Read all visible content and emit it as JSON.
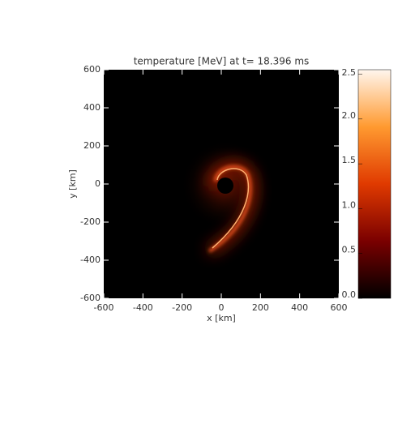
{
  "chart_data": {
    "type": "heatmap",
    "title": "temperature [MeV] at t= 18.396 ms",
    "x_label": "x [km]",
    "y_label": "y [km]",
    "xlim": [
      -600,
      600
    ],
    "ylim": [
      -600,
      600
    ],
    "xticks": [
      -600,
      -400,
      -200,
      0,
      200,
      400,
      600
    ],
    "yticks": [
      -600,
      -400,
      -200,
      0,
      200,
      400,
      600
    ],
    "clim": [
      0,
      2.55
    ],
    "cticks": [
      {
        "value": 0,
        "label": "0.0"
      },
      0.5,
      {
        "value": 1,
        "label": "1.0"
      },
      1.5,
      {
        "value": 2,
        "label": "2.0"
      },
      2.5
    ],
    "colormap": [
      "#000000",
      "#7a0000",
      "#e03a00",
      "#ff9a30",
      "#fff6ee"
    ]
  }
}
